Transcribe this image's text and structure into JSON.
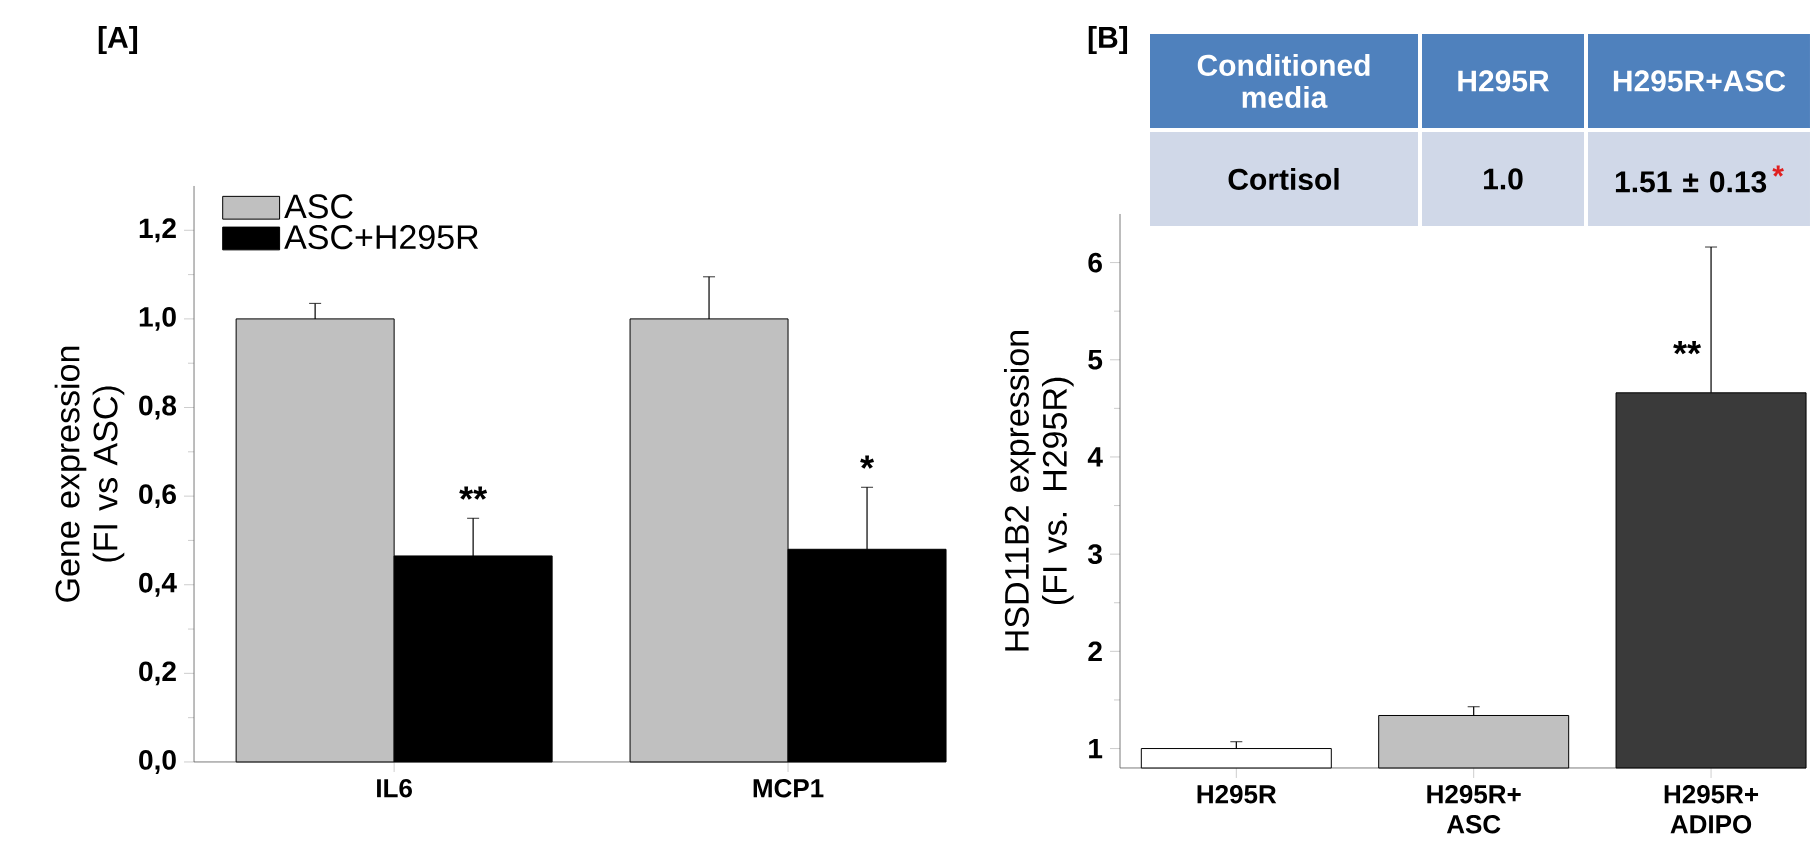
{
  "chart_data": [
    {
      "type": "bar",
      "title": "[A]",
      "ylabel": "Gene expression (FI vs ASC)",
      "categories": [
        "IL6",
        "MCP1"
      ],
      "series": [
        {
          "name": "ASC",
          "color": "#c0c0c0",
          "values": [
            1.0,
            1.0
          ],
          "errors": [
            [
              1.0,
              1.035
            ],
            [
              1.0,
              1.095
            ]
          ]
        },
        {
          "name": "ASC+H295R",
          "color": "#000000",
          "values": [
            0.465,
            0.48
          ],
          "errors": [
            [
              0.465,
              0.55
            ],
            [
              0.48,
              0.62
            ]
          ]
        }
      ],
      "ylim": [
        0,
        1.3
      ],
      "yticks": [
        {
          "value": 0,
          "label": "0,0"
        },
        {
          "value": 0.2,
          "label": "0,2"
        },
        {
          "value": 0.4,
          "label": "0,4"
        },
        {
          "value": 0.6,
          "label": "0,6"
        },
        {
          "value": 0.8,
          "label": "0,8"
        },
        {
          "value": 1.0,
          "label": "1,0"
        },
        {
          "value": 1.2,
          "label": "1,2"
        }
      ],
      "legend": "top left",
      "annotations": [
        {
          "text": "**",
          "x": "IL6",
          "y": 0.55
        },
        {
          "text": "*",
          "x": "MCP1",
          "y": 0.62
        }
      ]
    },
    {
      "type": "bar",
      "title": "[B]",
      "ylabel": "HSD11B2 expression (FI vs. H295R)",
      "categories": [
        "H295R",
        "H295R+ ASC",
        "H295R+ ADIPO"
      ],
      "values": [
        1.0,
        1.34,
        4.66
      ],
      "colors": [
        "#ffffff",
        "#c0c0c0",
        "#3a3a3a"
      ],
      "errors": [
        [
          1.0,
          1.07
        ],
        [
          1.34,
          1.43
        ],
        [
          4.66,
          6.16
        ]
      ],
      "ylim": [
        0.8,
        6.5
      ],
      "yticks": [
        1,
        2,
        3,
        4,
        5,
        6
      ],
      "annotations": [
        {
          "text": "**",
          "x": "H295R+ ADIPO",
          "y": 4.66
        },
        "Conditioned media",
        "H295R",
        "H295R+ASC",
        "Cortisol",
        "1.0",
        "1.51 ± 0.13",
        "*"
      ]
    }
  ]
}
